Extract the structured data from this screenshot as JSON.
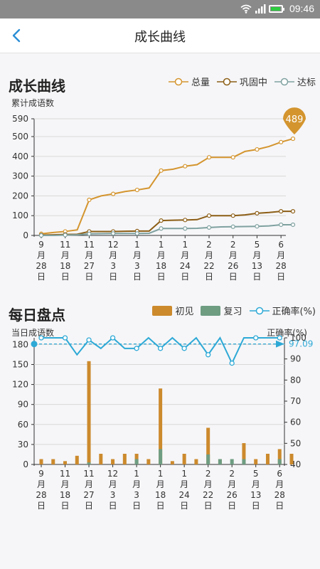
{
  "status_bar": {
    "time": "09:46",
    "battery_level": 0.95
  },
  "nav": {
    "title": "成长曲线",
    "back_icon": "chevron-left-icon"
  },
  "colors": {
    "total": "#d4952f",
    "consolidating": "#8c5e16",
    "reached": "#7fa1a0",
    "accuracy": "#2ea9d6",
    "review": "#6e9d82",
    "new": "#cc8a2d",
    "grid": "#d9d9d9",
    "accent": "#2b8ed6"
  },
  "growth": {
    "title": "成长曲线",
    "y_caption": "累计成语数",
    "legend": {
      "total": "总量",
      "consolidating": "巩固中",
      "reached": "达标"
    },
    "badge": "489"
  },
  "daily": {
    "title": "每日盘点",
    "left_caption": "当日成语数",
    "right_caption": "正确率(%)",
    "legend": {
      "new": "初见",
      "review": "复习",
      "accuracy": "正确率(%)"
    },
    "avg_label": "97.09"
  },
  "chart_data": [
    {
      "type": "line",
      "title": "成长曲线",
      "ylabel": "累计成语数",
      "ylim": [
        0,
        590
      ],
      "yticks": [
        0,
        100,
        200,
        300,
        400,
        500,
        590
      ],
      "x_tick_labels": [
        [
          "9",
          "月",
          "28",
          "日"
        ],
        [
          "11",
          "月",
          "18",
          "日"
        ],
        [
          "11",
          "月",
          "27",
          "日"
        ],
        [
          "12",
          "月",
          "3",
          "日"
        ],
        [
          "1",
          "月",
          "3",
          "日"
        ],
        [
          "1",
          "月",
          "18",
          "日"
        ],
        [
          "1",
          "月",
          "24",
          "日"
        ],
        [
          "2",
          "月",
          "22",
          "日"
        ],
        [
          "2",
          "月",
          "26",
          "日"
        ],
        [
          "5",
          "月",
          "13",
          "日"
        ],
        [
          "6",
          "月",
          "28",
          "日"
        ]
      ],
      "x_tick_positions": [
        0,
        2,
        4,
        6,
        8,
        10,
        12,
        14,
        16,
        18,
        20
      ],
      "grid": true,
      "legend_position": "top-right",
      "series": [
        {
          "name": "总量",
          "values": [
            8,
            15,
            20,
            28,
            180,
            200,
            210,
            222,
            230,
            240,
            328,
            335,
            350,
            358,
            395,
            395,
            395,
            425,
            435,
            450,
            472,
            489
          ]
        },
        {
          "name": "巩固中",
          "values": [
            2,
            3,
            5,
            6,
            20,
            20,
            20,
            21,
            22,
            22,
            75,
            77,
            78,
            80,
            100,
            100,
            100,
            104,
            112,
            116,
            122,
            122
          ]
        },
        {
          "name": "达标",
          "values": [
            0,
            0,
            2,
            3,
            8,
            9,
            10,
            10,
            10,
            11,
            35,
            35,
            35,
            36,
            40,
            43,
            44,
            45,
            46,
            48,
            54,
            54
          ]
        }
      ]
    },
    {
      "type": "bar",
      "title": "每日盘点",
      "ylabel": "当日成语数",
      "ylim": [
        0,
        190
      ],
      "yticks": [
        0,
        30,
        60,
        90,
        120,
        150,
        180
      ],
      "y2label": "正确率(%)",
      "y2lim": [
        40,
        100
      ],
      "y2ticks": [
        40,
        50,
        60,
        70,
        80,
        90,
        100
      ],
      "x_tick_labels": [
        [
          "9",
          "月",
          "28",
          "日"
        ],
        [
          "11",
          "月",
          "18",
          "日"
        ],
        [
          "11",
          "月",
          "27",
          "日"
        ],
        [
          "12",
          "月",
          "3",
          "日"
        ],
        [
          "1",
          "月",
          "3",
          "日"
        ],
        [
          "1",
          "月",
          "18",
          "日"
        ],
        [
          "1",
          "月",
          "24",
          "日"
        ],
        [
          "2",
          "月",
          "22",
          "日"
        ],
        [
          "2",
          "月",
          "26",
          "日"
        ],
        [
          "5",
          "月",
          "13",
          "日"
        ],
        [
          "6",
          "月",
          "28",
          "日"
        ]
      ],
      "x_tick_positions": [
        0,
        2,
        4,
        6,
        8,
        10,
        12,
        14,
        16,
        18,
        20
      ],
      "series": [
        {
          "name": "初见",
          "values": [
            8,
            8,
            5,
            13,
            155,
            16,
            8,
            16,
            16,
            8,
            114,
            5,
            16,
            8,
            55,
            8,
            0,
            32,
            8,
            16,
            23,
            16
          ]
        },
        {
          "name": "复习",
          "values": [
            0,
            0,
            0,
            0,
            3,
            0,
            0,
            0,
            8,
            0,
            23,
            0,
            0,
            0,
            15,
            8,
            8,
            8,
            0,
            0,
            8,
            0
          ]
        },
        {
          "name": "正确率(%)",
          "axis": "right",
          "values": [
            100,
            100,
            100,
            92,
            99,
            95,
            100,
            95,
            95,
            100,
            95,
            100,
            95,
            100,
            92,
            100,
            88,
            100,
            100,
            100,
            100,
            null
          ]
        }
      ],
      "reference_line": {
        "value": 97.09,
        "axis": "right"
      },
      "grid": true,
      "legend_position": "top-right"
    }
  ]
}
